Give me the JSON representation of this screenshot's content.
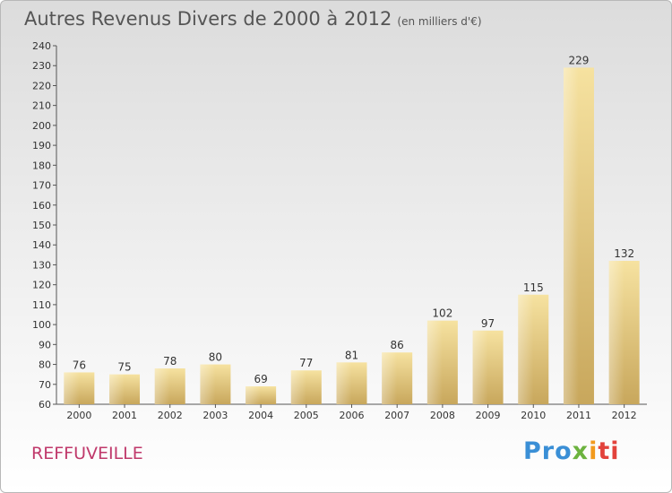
{
  "title": "Autres Revenus Divers de 2000 à 2012",
  "title_unit": "(en milliers d'€)",
  "town": "REFFUVEILLE",
  "logo": {
    "p1": "Pro",
    "p2": "x",
    "p3": "i",
    "p4": "ti"
  },
  "colors": {
    "bar_light": "#f6e2a0",
    "bar_dark": "#c8a75c",
    "title": "#555555",
    "town": "#c0396b"
  },
  "chart_data": {
    "type": "bar",
    "categories": [
      "2000",
      "2001",
      "2002",
      "2003",
      "2004",
      "2005",
      "2006",
      "2007",
      "2008",
      "2009",
      "2010",
      "2011",
      "2012"
    ],
    "values": [
      76,
      75,
      78,
      80,
      69,
      77,
      81,
      86,
      102,
      97,
      115,
      229,
      132
    ],
    "ylim": [
      60,
      240
    ],
    "yticks": [
      60,
      70,
      80,
      90,
      100,
      110,
      120,
      130,
      140,
      150,
      160,
      170,
      180,
      190,
      200,
      210,
      220,
      230,
      240
    ],
    "grid": false,
    "title": "Autres Revenus Divers de 2000 à 2012"
  }
}
